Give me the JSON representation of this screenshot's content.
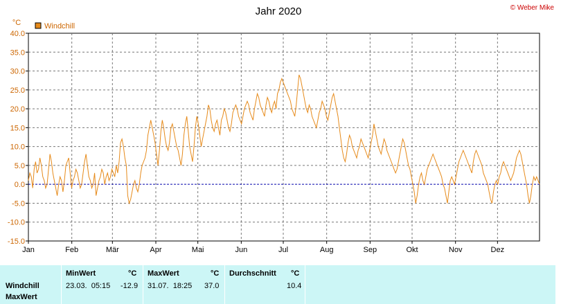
{
  "chart_data": {
    "type": "line",
    "title": "Jahr 2020",
    "copyright": "© Weber Mike",
    "y_unit": "°C",
    "ylim": [
      -15,
      40
    ],
    "yticks": [
      "40.0",
      "35.0",
      "30.0",
      "25.0",
      "20.0",
      "15.0",
      "10.0",
      "5.0",
      "0.0",
      "-5.0",
      "-10.0",
      "-15.0"
    ],
    "ytick_values": [
      40,
      35,
      30,
      25,
      20,
      15,
      10,
      5,
      0,
      -5,
      -10,
      -15
    ],
    "x_labels": [
      "Jan",
      "Feb",
      "Mär",
      "Apr",
      "Mai",
      "Jun",
      "Jul",
      "Aug",
      "Sep",
      "Okt",
      "Nov",
      "Dez"
    ],
    "x_label_days": [
      1,
      32,
      61,
      92,
      122,
      153,
      183,
      214,
      245,
      275,
      306,
      336
    ],
    "x_days_total": 366,
    "grid": true,
    "reference_line": 0,
    "legend_position": "top-left",
    "series": [
      {
        "name": "Windchill",
        "color": "#e68a1a",
        "x_step_days": 1,
        "values": [
          1,
          3,
          2,
          -1,
          4,
          6,
          3,
          4,
          7,
          5,
          2,
          1,
          -1,
          0,
          4,
          8,
          6,
          3,
          1,
          -1,
          -3,
          0,
          2,
          1,
          -2,
          1,
          5,
          6,
          7,
          3,
          -1,
          1,
          2,
          4,
          3,
          1,
          -1,
          0,
          3,
          6,
          8,
          5,
          2,
          1,
          -1,
          0,
          3,
          -3,
          -1,
          1,
          2,
          4,
          3,
          0,
          2,
          3,
          1,
          2,
          4,
          3,
          2,
          5,
          3,
          6,
          11,
          12,
          10,
          7,
          5,
          -3,
          -5,
          -4,
          -2,
          0,
          1,
          -1,
          -2,
          0,
          3,
          5,
          6,
          7,
          9,
          13,
          15,
          17,
          15,
          13,
          11,
          8,
          5,
          9,
          14,
          17,
          15,
          12,
          10,
          9,
          11,
          15,
          16,
          14,
          12,
          10,
          9,
          7,
          5,
          8,
          13,
          16,
          18,
          14,
          10,
          8,
          6,
          10,
          15,
          18,
          16,
          13,
          10,
          12,
          14,
          16,
          18,
          21,
          20,
          17,
          15,
          14,
          16,
          17,
          15,
          13,
          17,
          18,
          20,
          19,
          17,
          15,
          14,
          16,
          19,
          20,
          21,
          20,
          18,
          17,
          16,
          18,
          20,
          21,
          22,
          21,
          19,
          18,
          17,
          20,
          22,
          24,
          23,
          21,
          20,
          19,
          18,
          21,
          23,
          22,
          20,
          19,
          21,
          22,
          20,
          24,
          25,
          27,
          28,
          27,
          26,
          25,
          24,
          23,
          22,
          20,
          19,
          18,
          21,
          25,
          29,
          28,
          26,
          24,
          22,
          20,
          19,
          21,
          20,
          18,
          17,
          16,
          15,
          17,
          19,
          20,
          22,
          21,
          20,
          18,
          17,
          19,
          21,
          23,
          24,
          22,
          20,
          18,
          15,
          12,
          9,
          7,
          6,
          8,
          11,
          13,
          12,
          10,
          9,
          8,
          7,
          9,
          10,
          12,
          11,
          10,
          9,
          8,
          7,
          9,
          11,
          13,
          16,
          14,
          12,
          10,
          9,
          8,
          10,
          12,
          11,
          9,
          8,
          7,
          6,
          5,
          4,
          3,
          4,
          6,
          8,
          10,
          12,
          11,
          9,
          7,
          5,
          4,
          2,
          0,
          -2,
          -5,
          -3,
          0,
          2,
          3,
          1,
          0,
          2,
          4,
          5,
          6,
          7,
          8,
          7,
          6,
          5,
          4,
          3,
          2,
          0,
          -1,
          -3,
          -5,
          -2,
          1,
          2,
          1,
          0,
          2,
          4,
          6,
          7,
          8,
          9,
          8,
          7,
          6,
          5,
          4,
          3,
          6,
          8,
          9,
          8,
          7,
          6,
          5,
          3,
          2,
          1,
          0,
          -2,
          -4,
          -5,
          -2,
          0,
          1,
          0,
          2,
          3,
          5,
          6,
          5,
          4,
          3,
          2,
          1,
          2,
          3,
          5,
          7,
          8,
          9,
          8,
          6,
          4,
          2,
          0,
          -3,
          -5,
          -3,
          0,
          2,
          1,
          2,
          1,
          0
        ]
      }
    ]
  },
  "stats": {
    "row_label_1": "Windchill",
    "row_label_2": "MaxWert",
    "min_header": "MinWert",
    "min_unit": "°C",
    "min_datetime": "23.03.  05:15",
    "min_value": "-12.9",
    "max_header": "MaxWert",
    "max_unit": "°C",
    "max_datetime": "31.07.  18:25",
    "max_value": "37.0",
    "avg_header": "Durchschnitt",
    "avg_unit": "°C",
    "avg_value": "10.4"
  }
}
